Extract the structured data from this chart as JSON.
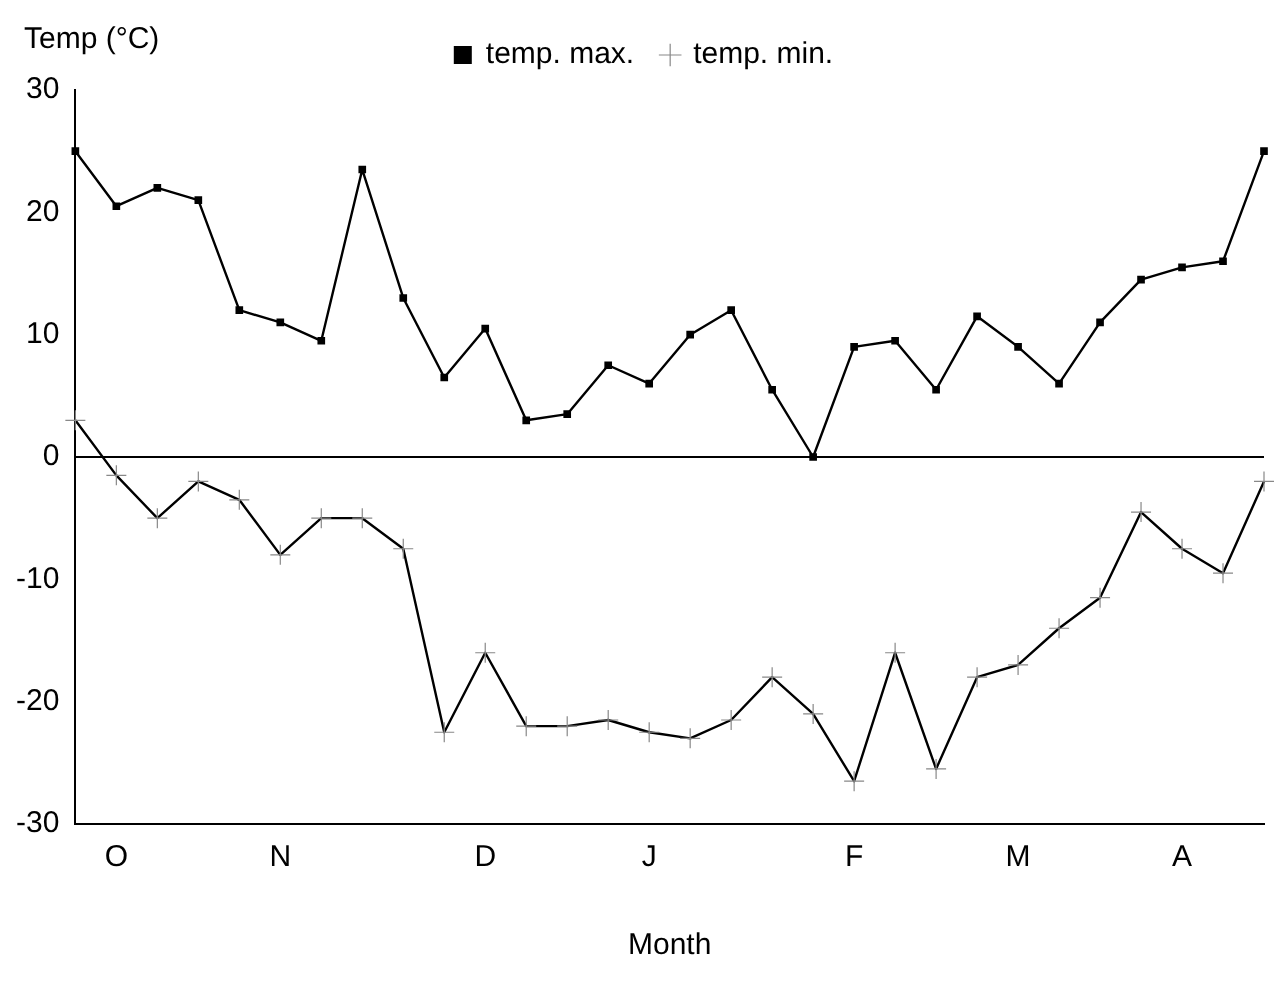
{
  "chart_data": {
    "type": "line",
    "xlabel": "Month",
    "ylabel": "Temp (°C)",
    "categories": [
      null,
      "O",
      null,
      null,
      null,
      "N",
      null,
      null,
      null,
      null,
      "D",
      null,
      null,
      null,
      "J",
      null,
      null,
      null,
      null,
      "F",
      null,
      null,
      null,
      "M",
      null,
      null,
      null,
      "A",
      null,
      null
    ],
    "series": [
      {
        "name": "temp. max.",
        "color": "#000000",
        "marker": "square",
        "values": [
          25,
          20.5,
          22,
          21,
          12,
          11,
          9.5,
          23.5,
          13,
          6.5,
          10.5,
          3,
          3.5,
          7.5,
          6,
          10,
          12,
          5.5,
          0,
          9,
          9.5,
          5.5,
          11.5,
          9,
          6,
          11,
          14.5,
          15.5,
          16,
          25
        ]
      },
      {
        "name": "temp. min.",
        "color": "#000000",
        "marker": "cross",
        "values": [
          3,
          -1.5,
          -5,
          -2,
          -3.5,
          -8,
          -5,
          -5,
          -7.5,
          -22.5,
          -16,
          -22,
          -22,
          -21.5,
          -22.5,
          -23,
          -21.5,
          -18,
          -21,
          -26.5,
          -16,
          -25.5,
          -18,
          -17,
          -14,
          -11.5,
          -4.5,
          -7.5,
          -9.5,
          -2
        ]
      }
    ],
    "ylim": [
      -30,
      30
    ],
    "yticks": [
      -30,
      -20,
      -10,
      0,
      10,
      20,
      30
    ],
    "grid": false,
    "legend": "top",
    "line_style": "solid",
    "ref_lines": [
      {
        "axis": "y",
        "value": 0,
        "color": "#000000"
      }
    ]
  }
}
